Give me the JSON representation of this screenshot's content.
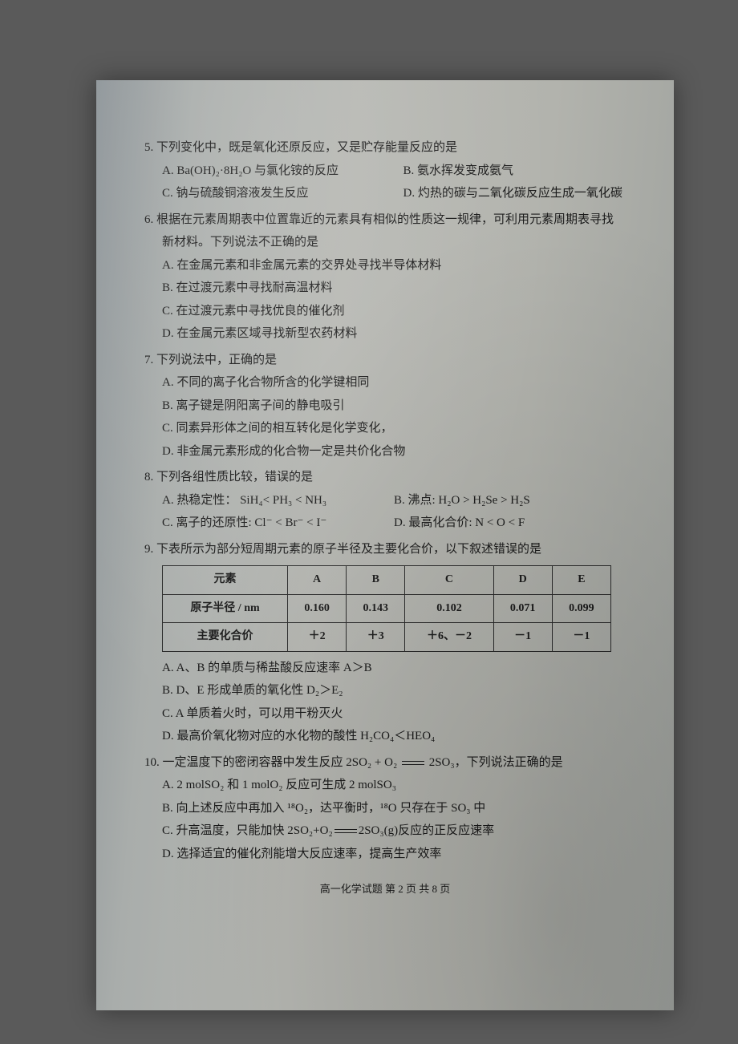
{
  "q5": {
    "stem": "5. 下列变化中，既是氧化还原反应，又是贮存能量反应的是",
    "A": "A. Ba(OH)₂·8H₂O 与氯化铵的反应",
    "B": "B. 氨水挥发变成氨气",
    "C": "C. 钠与硫酸铜溶液发生反应",
    "D": "D. 灼热的碳与二氧化碳反应生成一氧化碳"
  },
  "q6": {
    "stem1": "6. 根据在元素周期表中位置靠近的元素具有相似的性质这一规律，可利用元素周期表寻找",
    "stem2": "新材料。下列说法不正确的是",
    "A": "A. 在金属元素和非金属元素的交界处寻找半导体材料",
    "B": "B. 在过渡元素中寻找耐高温材料",
    "C": "C. 在过渡元素中寻找优良的催化剂",
    "D": "D. 在金属元素区域寻找新型农药材料"
  },
  "q7": {
    "stem": "7. 下列说法中，正确的是",
    "A": "A. 不同的离子化合物所含的化学键相同",
    "B": "B. 离子键是阴阳离子间的静电吸引",
    "C": "C. 同素异形体之间的相互转化是化学变化，",
    "D": "D. 非金属元素形成的化合物一定是共价化合物"
  },
  "q8": {
    "stem": "8. 下列各组性质比较，错误的是",
    "A": "A. 热稳定性：  SiH₄< PH₃ < NH₃",
    "B": "B. 沸点: H₂O > H₂Se > H₂S",
    "C": "C. 离子的还原性: Cl⁻ < Br⁻ < I⁻",
    "D": "D. 最高化合价: N < O < F"
  },
  "q9": {
    "stem": "9. 下表所示为部分短周期元素的原子半径及主要化合价，以下叙述错误的是",
    "table": {
      "headers": [
        "元素",
        "A",
        "B",
        "C",
        "D",
        "E"
      ],
      "row1_label": "原子半径 / nm",
      "row1": [
        "0.160",
        "0.143",
        "0.102",
        "0.071",
        "0.099"
      ],
      "row2_label": "主要化合价",
      "row2": [
        "＋2",
        "＋3",
        "＋6、－2",
        "－1",
        "－1"
      ]
    },
    "A": "A. A、B 的单质与稀盐酸反应速率 A＞B",
    "B": "B. D、E 形成单质的氧化性 D₂＞E₂",
    "C": "C. A 单质着火时，可以用干粉灭火",
    "D": "D. 最高价氧化物对应的水化物的酸性  H₂CO₄＜HEO₄"
  },
  "q10": {
    "stem_pre": "10. 一定温度下的密闭容器中发生反应 2SO₂ + O₂ ",
    "stem_post": " 2SO₃，下列说法正确的是",
    "A": "A. 2 molSO₂ 和 1 molO₂ 反应可生成 2 molSO₃",
    "B": "B. 向上述反应中再加入 ¹⁸O₂，达平衡时，¹⁸O 只存在于 SO₃ 中",
    "C_pre": "C. 升高温度，只能加快 2SO₂+O₂",
    "C_post": "2SO₃(g)反应的正反应速率",
    "D": "D. 选择适宜的催化剂能增大反应速率，提高生产效率"
  },
  "footer": "高一化学试题  第 2 页  共 8 页"
}
